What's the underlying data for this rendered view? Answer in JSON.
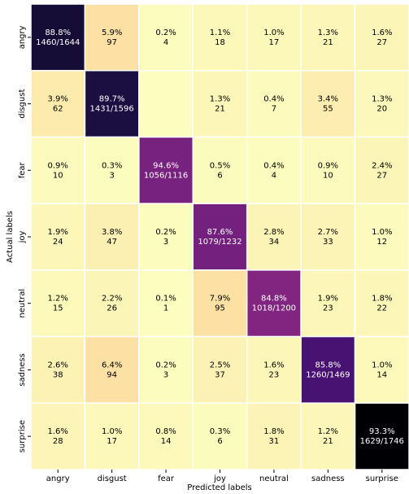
{
  "chart_data": {
    "type": "heatmap",
    "x_label": "Predicted labels",
    "y_label": "Actual labels",
    "x_categories": [
      "angry",
      "disgust",
      "fear",
      "joy",
      "neutral",
      "sadness",
      "surprise"
    ],
    "y_categories": [
      "angry",
      "disgust",
      "fear",
      "joy",
      "neutral",
      "sadness",
      "surprise"
    ],
    "colormap": "magma_r",
    "values": [
      [
        1460,
        97,
        4,
        18,
        17,
        21,
        27
      ],
      [
        62,
        1431,
        null,
        21,
        7,
        55,
        20
      ],
      [
        10,
        3,
        1056,
        6,
        4,
        10,
        27
      ],
      [
        24,
        47,
        3,
        1079,
        34,
        33,
        12
      ],
      [
        15,
        26,
        1,
        95,
        1018,
        23,
        22
      ],
      [
        38,
        94,
        3,
        37,
        23,
        1260,
        14
      ],
      [
        28,
        17,
        14,
        6,
        31,
        21,
        1629
      ]
    ],
    "value_labels": [
      [
        "1460/1644",
        "97",
        "4",
        "18",
        "17",
        "21",
        "27"
      ],
      [
        "62",
        "1431/1596",
        null,
        "21",
        "7",
        "55",
        "20"
      ],
      [
        "10",
        "3",
        "1056/1116",
        "6",
        "4",
        "10",
        "27"
      ],
      [
        "24",
        "47",
        "3",
        "1079/1232",
        "34",
        "33",
        "12"
      ],
      [
        "15",
        "26",
        "1",
        "95",
        "1018/1200",
        "23",
        "22"
      ],
      [
        "38",
        "94",
        "3",
        "37",
        "23",
        "1260/1469",
        "14"
      ],
      [
        "28",
        "17",
        "14",
        "6",
        "31",
        "21",
        "1629/1746"
      ]
    ],
    "percent_labels": [
      [
        "88.8%",
        "5.9%",
        "0.2%",
        "1.1%",
        "1.0%",
        "1.3%",
        "1.6%"
      ],
      [
        "3.9%",
        "89.7%",
        null,
        "1.3%",
        "0.4%",
        "3.4%",
        "1.3%"
      ],
      [
        "0.9%",
        "0.3%",
        "94.6%",
        "0.5%",
        "0.4%",
        "0.9%",
        "2.4%"
      ],
      [
        "1.9%",
        "3.8%",
        "0.2%",
        "87.6%",
        "2.8%",
        "2.7%",
        "1.0%"
      ],
      [
        "1.2%",
        "2.2%",
        "0.1%",
        "7.9%",
        "84.8%",
        "1.9%",
        "1.8%"
      ],
      [
        "2.6%",
        "6.4%",
        "0.2%",
        "2.5%",
        "1.6%",
        "85.8%",
        "1.0%"
      ],
      [
        "1.6%",
        "1.0%",
        "0.8%",
        "0.3%",
        "1.8%",
        "1.2%",
        "93.3%"
      ]
    ]
  }
}
